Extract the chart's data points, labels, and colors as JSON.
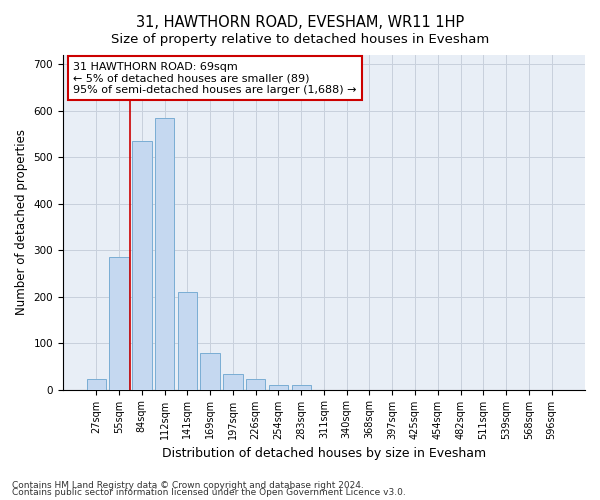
{
  "title": "31, HAWTHORN ROAD, EVESHAM, WR11 1HP",
  "subtitle": "Size of property relative to detached houses in Evesham",
  "xlabel": "Distribution of detached houses by size in Evesham",
  "ylabel": "Number of detached properties",
  "footnote1": "Contains HM Land Registry data © Crown copyright and database right 2024.",
  "footnote2": "Contains public sector information licensed under the Open Government Licence v3.0.",
  "categories": [
    "27sqm",
    "55sqm",
    "84sqm",
    "112sqm",
    "141sqm",
    "169sqm",
    "197sqm",
    "226sqm",
    "254sqm",
    "283sqm",
    "311sqm",
    "340sqm",
    "368sqm",
    "397sqm",
    "425sqm",
    "454sqm",
    "482sqm",
    "511sqm",
    "539sqm",
    "568sqm",
    "596sqm"
  ],
  "values": [
    22,
    285,
    535,
    585,
    210,
    78,
    33,
    22,
    10,
    10,
    0,
    0,
    0,
    0,
    0,
    0,
    0,
    0,
    0,
    0,
    0
  ],
  "bar_color": "#c5d8f0",
  "bar_edge_color": "#7aadd4",
  "vline_x": 1.5,
  "vline_color": "#cc0000",
  "annotation_text": "31 HAWTHORN ROAD: 69sqm\n← 5% of detached houses are smaller (89)\n95% of semi-detached houses are larger (1,688) →",
  "annotation_box_color": "#cc0000",
  "annotation_box_facecolor": "white",
  "ylim": [
    0,
    720
  ],
  "yticks": [
    0,
    100,
    200,
    300,
    400,
    500,
    600,
    700
  ],
  "grid_color": "#c8d0dc",
  "bg_color": "#e8eef6",
  "title_fontsize": 10.5,
  "subtitle_fontsize": 9.5,
  "ylabel_fontsize": 8.5,
  "xlabel_fontsize": 9,
  "tick_fontsize": 7,
  "annot_fontsize": 8,
  "footnote_fontsize": 6.5
}
